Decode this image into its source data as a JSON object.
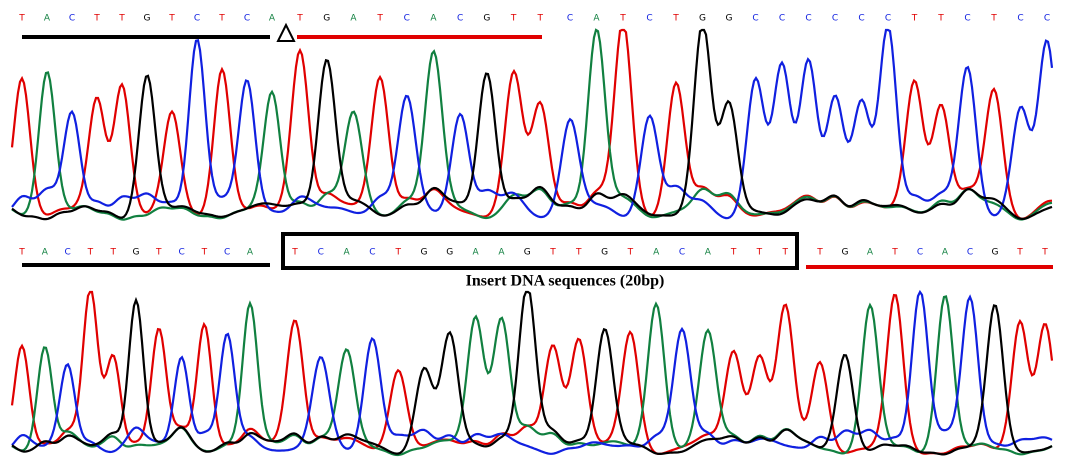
{
  "top": {
    "left": [
      "T",
      "A",
      "C",
      "T",
      "T",
      "G",
      "T",
      "C",
      "T",
      "C",
      "A"
    ],
    "right": [
      "T",
      "G",
      "A",
      "T",
      "C",
      "A",
      "C",
      "G",
      "T",
      "T"
    ],
    "rest": [
      "C",
      "A",
      "T",
      "C",
      "T",
      "G",
      "G",
      "C",
      "C",
      "C",
      "C",
      "C",
      "C",
      "T",
      "T",
      "C",
      "T",
      "C",
      "C"
    ]
  },
  "bottom": {
    "left": [
      "T",
      "A",
      "C",
      "T",
      "T",
      "G",
      "T",
      "C",
      "T",
      "C",
      "A"
    ],
    "insert": [
      "T",
      "C",
      "A",
      "C",
      "T",
      "G",
      "G",
      "A",
      "A",
      "G",
      "T",
      "T",
      "G",
      "T",
      "A",
      "C",
      "A",
      "T",
      "T",
      "T"
    ],
    "right": [
      "T",
      "G",
      "A",
      "T",
      "C",
      "A",
      "C",
      "G",
      "T",
      "T"
    ],
    "insert_label": "Insert DNA sequences (20bp)"
  }
}
